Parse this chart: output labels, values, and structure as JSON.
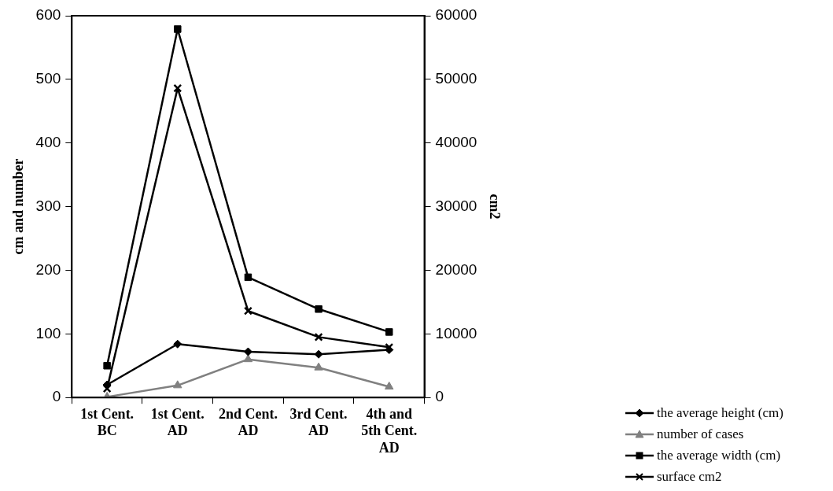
{
  "chart_data": {
    "type": "line",
    "ylabel": "cm and number",
    "y2label": "cm2",
    "categories": [
      "1st Cent. BC",
      "1st Cent. AD",
      "2nd Cent. AD",
      "3rd Cent. AD",
      "4th and 5th Cent. AD"
    ],
    "ylim": [
      0,
      600
    ],
    "yticks": [
      0,
      100,
      200,
      300,
      400,
      500,
      600
    ],
    "y2lim": [
      0,
      60000
    ],
    "y2ticks": [
      0,
      10000,
      20000,
      30000,
      40000,
      50000,
      60000
    ],
    "grid": false,
    "legend": "bottom right",
    "line_style": "solid",
    "series": [
      {
        "name": "the average height (cm)",
        "color": "#000000",
        "marker": "diamond",
        "values": [
          20,
          84,
          72,
          68,
          75
        ]
      },
      {
        "name": "number of cases",
        "color": "#808080",
        "marker": "triangle",
        "values": [
          1,
          19,
          60,
          47,
          17
        ]
      },
      {
        "name": "the average width (cm)",
        "color": "#000000",
        "marker": "square",
        "values": [
          50,
          579,
          189,
          139,
          103
        ]
      },
      {
        "name": "surface cm2",
        "color": "#000000",
        "marker": "cross",
        "axis": "y2",
        "values": [
          1400,
          48600,
          13600,
          9500,
          7900
        ]
      }
    ]
  }
}
